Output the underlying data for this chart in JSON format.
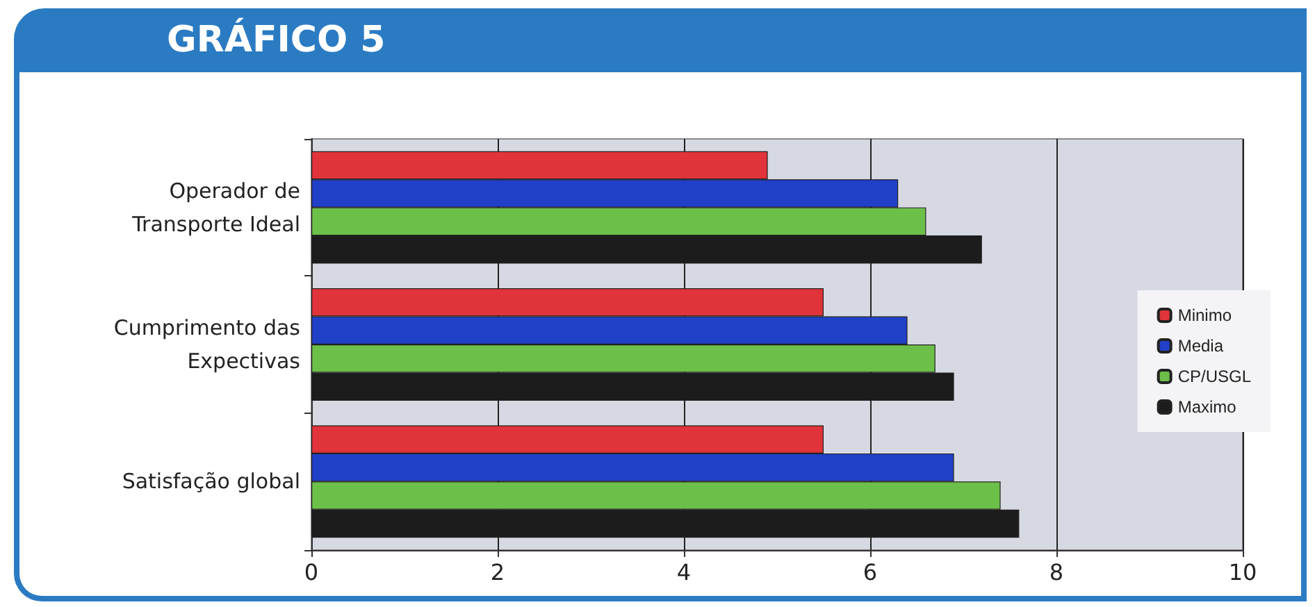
{
  "chart_data": {
    "type": "bar",
    "orientation": "horizontal",
    "title": "GRÁFICO 5",
    "categories": [
      "Operador de\nTransporte Ideal",
      "Cumprimento das\nExpectivas",
      "Satisfação global"
    ],
    "series": [
      {
        "name": "Minimo",
        "color": "#e0343a",
        "values": [
          4.9,
          5.5,
          5.5
        ]
      },
      {
        "name": "Media",
        "color": "#2140c8",
        "values": [
          6.3,
          6.4,
          6.9
        ]
      },
      {
        "name": "CP/USGL",
        "color": "#6cc04a",
        "values": [
          6.6,
          6.7,
          7.4
        ]
      },
      {
        "name": "Maximo",
        "color": "#1c1c1c",
        "values": [
          7.2,
          6.9,
          7.6
        ]
      }
    ],
    "xlim": [
      0,
      10
    ],
    "xticks": [
      0,
      2,
      4,
      6,
      8,
      10
    ],
    "grid": "x",
    "legend": "right"
  }
}
